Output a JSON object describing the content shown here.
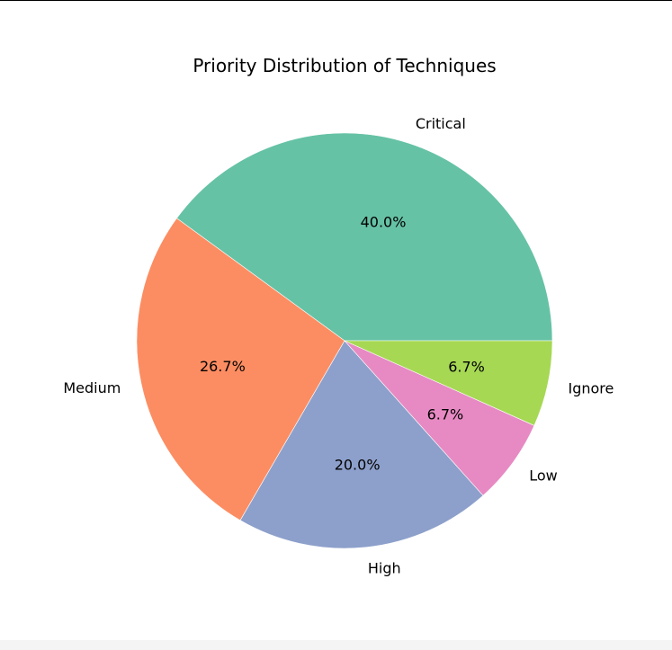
{
  "chart_data": {
    "type": "pie",
    "title": "Priority Distribution of Techniques",
    "categories": [
      "Critical",
      "Medium",
      "High",
      "Low",
      "Ignore"
    ],
    "values": [
      40.0,
      26.7,
      20.0,
      6.7,
      6.7
    ],
    "percent_labels": [
      "40.0%",
      "26.7%",
      "20.0%",
      "6.7%",
      "6.7%"
    ],
    "colors": [
      "#66c2a5",
      "#fc8d62",
      "#8da0cb",
      "#e78ac3",
      "#a6d854"
    ],
    "start_angle_deg": 0,
    "direction": "counterclockwise",
    "legend": "none"
  }
}
